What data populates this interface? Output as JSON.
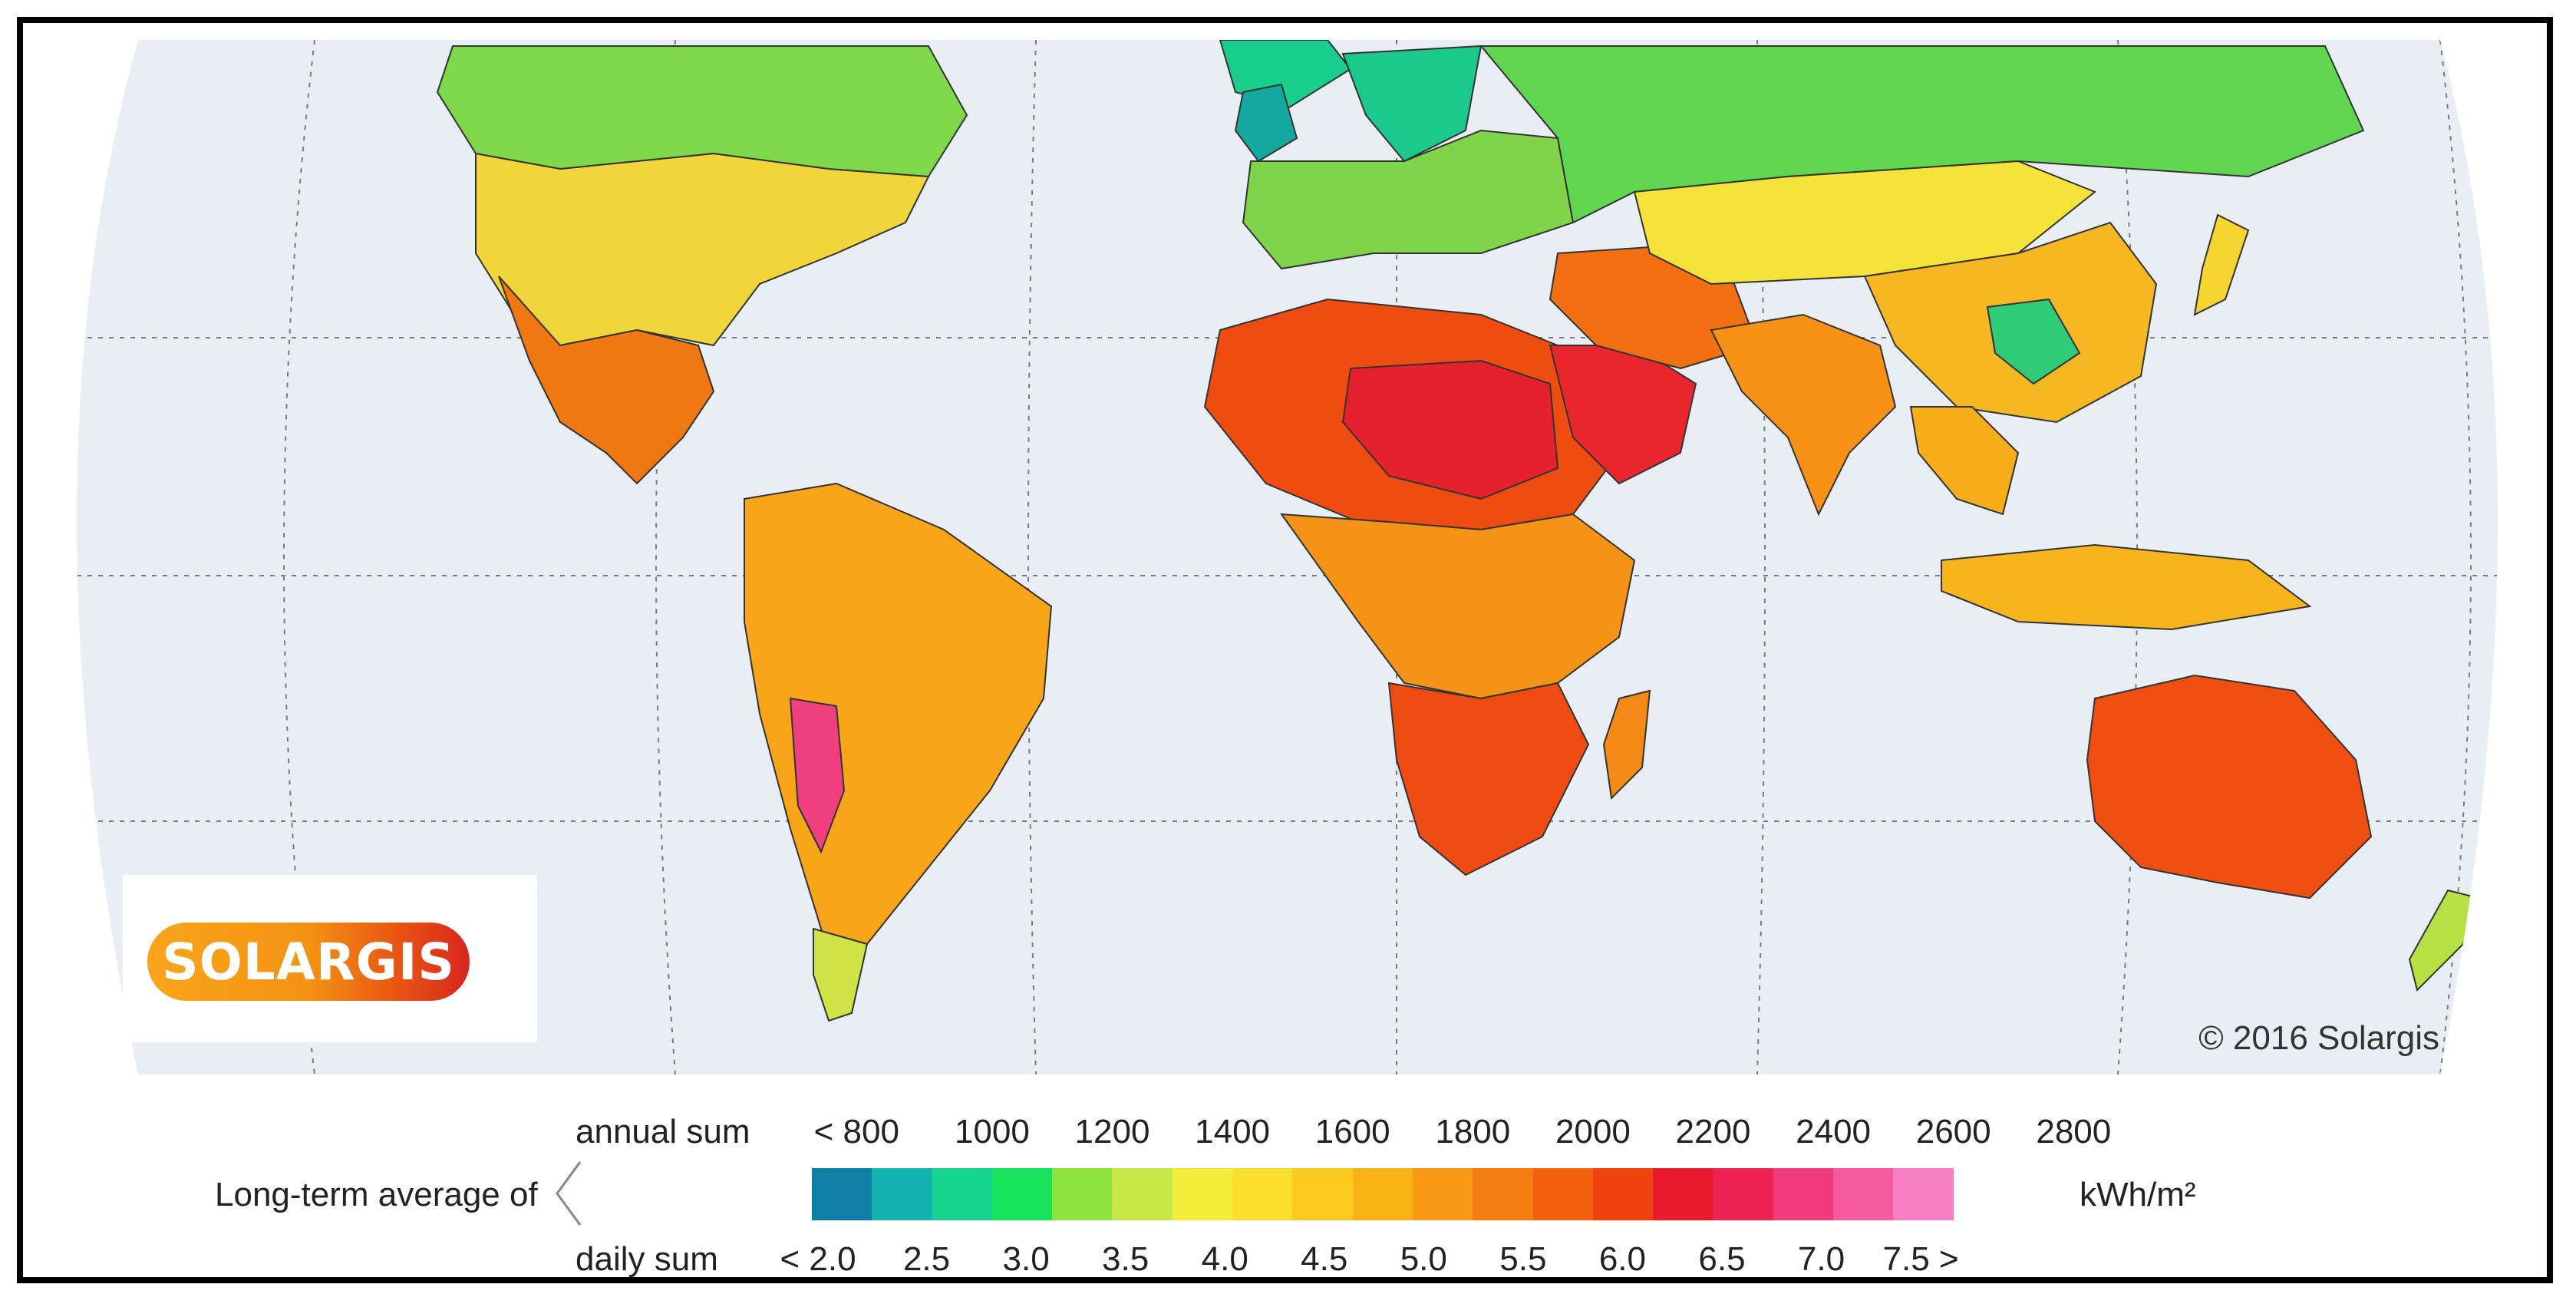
{
  "copyright": "© 2016 Solargis",
  "logo_text": "SOLARGIS",
  "legend": {
    "caption": "Long-term average of",
    "annual_label": "annual sum",
    "daily_label": "daily sum",
    "unit": "kWh/m²",
    "annual_ticks": [
      "< 800",
      "1000",
      "1200",
      "1400",
      "1600",
      "1800",
      "2000",
      "2200",
      "2400",
      "2600",
      "2800"
    ],
    "daily_ticks": [
      "< 2.0",
      "2.5",
      "3.0",
      "3.5",
      "4.0",
      "4.5",
      "5.0",
      "5.5",
      "6.0",
      "6.5",
      "7.0",
      "7.5 >"
    ],
    "colors": [
      "#0f7fa5",
      "#12b3b1",
      "#17d391",
      "#19e35a",
      "#8ee43e",
      "#c8e645",
      "#f2ee3a",
      "#fbdf2c",
      "#fbcc1e",
      "#f9b316",
      "#f89a14",
      "#f57e12",
      "#f26010",
      "#ee420f",
      "#e61a2a",
      "#ec2250",
      "#f03a7a",
      "#f55aa0",
      "#f77ec2"
    ]
  },
  "map": {
    "ocean_color": "#e8eef4",
    "regions": [
      {
        "name": "north-america",
        "color": "#f2d53a"
      },
      {
        "name": "canada-north",
        "color": "#7fd84a"
      },
      {
        "name": "mexico-central-america",
        "color": "#f07812"
      },
      {
        "name": "south-america",
        "color": "#f8a51a"
      },
      {
        "name": "andes-desert",
        "color": "#ef3f7d"
      },
      {
        "name": "patagonia",
        "color": "#cfe346"
      },
      {
        "name": "greenland",
        "color": "#18cf8e"
      },
      {
        "name": "europe",
        "color": "#7fd44a"
      },
      {
        "name": "scandinavia",
        "color": "#1cc98c"
      },
      {
        "name": "north-africa",
        "color": "#ef4c12"
      },
      {
        "name": "sahara-core",
        "color": "#e6202c"
      },
      {
        "name": "central-africa",
        "color": "#f59218"
      },
      {
        "name": "southern-africa",
        "color": "#ee4c12"
      },
      {
        "name": "madagascar",
        "color": "#f58b16"
      },
      {
        "name": "arabia",
        "color": "#e9262e"
      },
      {
        "name": "middle-east",
        "color": "#f27012"
      },
      {
        "name": "russia",
        "color": "#5fd550"
      },
      {
        "name": "central-asia",
        "color": "#f6e33a"
      },
      {
        "name": "china",
        "color": "#f6b822"
      },
      {
        "name": "sichuan",
        "color": "#2fcb78"
      },
      {
        "name": "india",
        "color": "#f79216"
      },
      {
        "name": "southeast-asia",
        "color": "#f8ad1a"
      },
      {
        "name": "indonesia",
        "color": "#f8b41c"
      },
      {
        "name": "japan",
        "color": "#f6d530"
      },
      {
        "name": "australia",
        "color": "#ef5012"
      },
      {
        "name": "new-zealand",
        "color": "#b6e044"
      },
      {
        "name": "uk-ireland",
        "color": "#14a9a0"
      }
    ]
  }
}
